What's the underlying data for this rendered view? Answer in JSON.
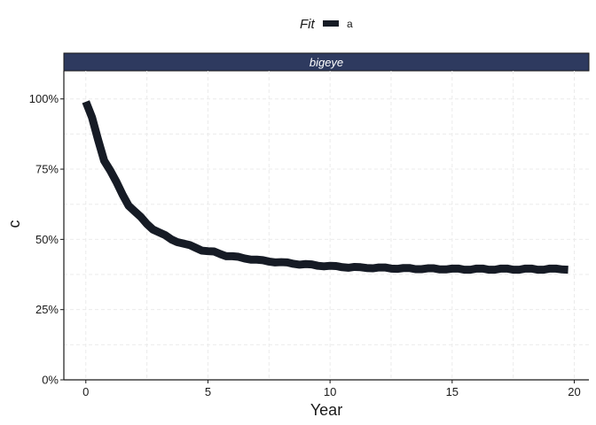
{
  "chart_data": {
    "type": "line",
    "legend": {
      "title": "Fit",
      "position": "top",
      "entries": [
        "a"
      ]
    },
    "facet_label": "bigeye",
    "xlabel": "Year",
    "ylabel": "c",
    "xlim": [
      -0.9,
      20.6
    ],
    "ylim": [
      0,
      1.1
    ],
    "x_ticks": [
      0,
      5,
      10,
      15,
      20
    ],
    "x_tick_labels": [
      "0",
      "5",
      "10",
      "15",
      "20"
    ],
    "y_ticks": [
      0,
      0.25,
      0.5,
      0.75,
      1.0
    ],
    "y_tick_labels": [
      "0%",
      "25%",
      "50%",
      "75%",
      "100%"
    ],
    "grid": true,
    "colors": {
      "series": "#161b25",
      "strip_fill": "#2e3a5f",
      "grid": "#ebebeb"
    },
    "series": [
      {
        "name": "a",
        "x": [
          0,
          0.25,
          0.5,
          0.75,
          1,
          1.25,
          1.5,
          1.75,
          2,
          2.25,
          2.5,
          2.75,
          3,
          3.25,
          3.5,
          3.75,
          4,
          4.25,
          4.5,
          4.75,
          5,
          5.25,
          5.5,
          5.75,
          6,
          6.25,
          6.5,
          6.75,
          7,
          7.25,
          7.5,
          7.75,
          8,
          8.25,
          8.5,
          8.75,
          9,
          9.25,
          9.5,
          9.75,
          10,
          10.25,
          10.5,
          10.75,
          11,
          11.25,
          11.5,
          11.75,
          12,
          12.25,
          12.5,
          12.75,
          13,
          13.25,
          13.5,
          13.75,
          14,
          14.25,
          14.5,
          14.75,
          15,
          15.25,
          15.5,
          15.75,
          16,
          16.25,
          16.5,
          16.75,
          17,
          17.25,
          17.5,
          17.75,
          18,
          18.25,
          18.5,
          18.75,
          19,
          19.25,
          19.5,
          19.75
        ],
        "values": [
          0.99,
          0.935,
          0.855,
          0.78,
          0.745,
          0.705,
          0.66,
          0.62,
          0.6,
          0.58,
          0.555,
          0.535,
          0.525,
          0.515,
          0.5,
          0.49,
          0.485,
          0.48,
          0.47,
          0.46,
          0.458,
          0.457,
          0.448,
          0.44,
          0.44,
          0.438,
          0.432,
          0.428,
          0.428,
          0.426,
          0.421,
          0.418,
          0.419,
          0.418,
          0.413,
          0.41,
          0.412,
          0.411,
          0.406,
          0.404,
          0.406,
          0.405,
          0.401,
          0.399,
          0.402,
          0.401,
          0.398,
          0.397,
          0.4,
          0.4,
          0.396,
          0.395,
          0.398,
          0.398,
          0.394,
          0.394,
          0.397,
          0.397,
          0.393,
          0.393,
          0.396,
          0.396,
          0.392,
          0.392,
          0.396,
          0.396,
          0.392,
          0.392,
          0.396,
          0.396,
          0.392,
          0.392,
          0.396,
          0.396,
          0.392,
          0.392,
          0.396,
          0.396,
          0.393,
          0.392
        ]
      }
    ]
  }
}
